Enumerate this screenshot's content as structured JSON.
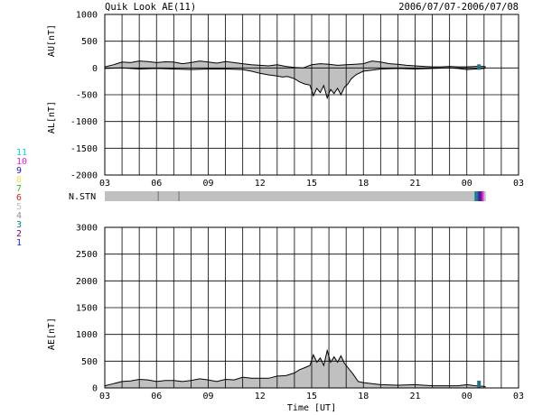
{
  "header": {
    "title": "Quik Look AE(11)",
    "date_range": "2006/07/07-2006/07/08"
  },
  "station_numbers": [
    {
      "label": "11",
      "color": "#00d8d8"
    },
    {
      "label": "10",
      "color": "#e020e0"
    },
    {
      "label": "9",
      "color": "#2020c0"
    },
    {
      "label": "8",
      "color": "#e8e850"
    },
    {
      "label": "7",
      "color": "#30c030"
    },
    {
      "label": "6",
      "color": "#e02020"
    },
    {
      "label": "5",
      "color": "#c0c0c0"
    },
    {
      "label": "4",
      "color": "#909090"
    },
    {
      "label": "3",
      "color": "#008888"
    },
    {
      "label": "2",
      "color": "#800080"
    },
    {
      "label": "1",
      "color": "#2020ff"
    }
  ],
  "nstn_label": "N.STN",
  "chart_data": [
    {
      "type": "area",
      "name": "au-al-panel",
      "ylabel_upper": "AU[nT]",
      "ylabel_lower": "AL[nT]",
      "ylim": [
        -2000,
        1000
      ],
      "yticks": [
        "1000",
        "500",
        "0",
        "-500",
        "-1000",
        "-1500",
        "-2000"
      ],
      "ytick_values": [
        1000,
        500,
        0,
        -500,
        -1000,
        -1500,
        -2000
      ],
      "xlim": [
        3,
        27
      ],
      "xticks": [
        "03",
        "06",
        "09",
        "12",
        "15",
        "18",
        "21",
        "00",
        "03"
      ],
      "xtick_values": [
        3,
        6,
        9,
        12,
        15,
        18,
        21,
        24,
        27
      ],
      "grid": true,
      "data_end": 25.1,
      "au": {
        "x": [
          3.0,
          3.5,
          4.0,
          4.5,
          5.0,
          5.5,
          6.0,
          6.5,
          7.0,
          7.5,
          8.0,
          8.5,
          9.0,
          9.5,
          10.0,
          10.5,
          11.0,
          11.5,
          12.0,
          12.5,
          13.0,
          13.5,
          14.0,
          14.5,
          15.0,
          15.5,
          16.0,
          16.5,
          17.0,
          17.5,
          18.0,
          18.5,
          19.0,
          19.5,
          20.0,
          20.5,
          21.0,
          21.5,
          22.0,
          22.5,
          23.0,
          23.5,
          24.0,
          24.5,
          25.0,
          25.1
        ],
        "y": [
          20,
          60,
          110,
          100,
          130,
          120,
          100,
          115,
          110,
          80,
          100,
          130,
          110,
          90,
          120,
          100,
          80,
          60,
          50,
          40,
          60,
          30,
          10,
          0,
          60,
          80,
          70,
          50,
          60,
          70,
          80,
          130,
          110,
          80,
          70,
          50,
          40,
          30,
          20,
          20,
          30,
          20,
          20,
          30,
          30,
          20
        ]
      },
      "al": {
        "x": [
          3.0,
          4.0,
          5.0,
          6.0,
          7.0,
          8.0,
          9.0,
          10.0,
          11.0,
          11.5,
          12.0,
          12.5,
          13.0,
          13.3,
          13.6,
          14.0,
          14.3,
          14.6,
          14.9,
          15.1,
          15.3,
          15.5,
          15.7,
          15.9,
          16.1,
          16.3,
          16.5,
          16.7,
          16.9,
          17.1,
          17.3,
          17.6,
          18.0,
          18.5,
          19.0,
          20.0,
          21.0,
          22.0,
          23.0,
          23.5,
          24.0,
          24.5,
          25.0,
          25.1
        ],
        "y": [
          -10,
          0,
          -20,
          -10,
          -20,
          -30,
          -20,
          -20,
          -30,
          -60,
          -100,
          -130,
          -150,
          -170,
          -160,
          -200,
          -260,
          -300,
          -320,
          -520,
          -380,
          -460,
          -330,
          -560,
          -400,
          -480,
          -380,
          -500,
          -360,
          -300,
          -200,
          -120,
          -60,
          -40,
          -20,
          -10,
          -20,
          -10,
          0,
          -10,
          -30,
          -20,
          -10,
          0
        ]
      }
    },
    {
      "type": "area",
      "name": "ae-panel",
      "ylabel": "AE[nT]",
      "xlabel": "Time [UT]",
      "ylim": [
        0,
        3000
      ],
      "yticks": [
        "3000",
        "2500",
        "2000",
        "1500",
        "1000",
        "500",
        "0"
      ],
      "ytick_values": [
        3000,
        2500,
        2000,
        1500,
        1000,
        500,
        0
      ],
      "xlim": [
        3,
        27
      ],
      "xticks": [
        "03",
        "06",
        "09",
        "12",
        "15",
        "18",
        "21",
        "00",
        "03"
      ],
      "xtick_values": [
        3,
        6,
        9,
        12,
        15,
        18,
        21,
        24,
        27
      ],
      "grid": true,
      "ae": {
        "x": [
          3.0,
          3.5,
          4.0,
          4.5,
          5.0,
          5.5,
          6.0,
          6.5,
          7.0,
          7.5,
          8.0,
          8.5,
          9.0,
          9.5,
          10.0,
          10.5,
          11.0,
          11.5,
          12.0,
          12.5,
          13.0,
          13.5,
          14.0,
          14.3,
          14.6,
          14.9,
          15.1,
          15.3,
          15.5,
          15.7,
          15.9,
          16.1,
          16.3,
          16.5,
          16.7,
          16.9,
          17.1,
          17.4,
          17.7,
          18.0,
          18.5,
          19.0,
          20.0,
          21.0,
          22.0,
          23.0,
          23.5,
          24.0,
          24.5,
          25.0,
          25.1
        ],
        "y": [
          40,
          80,
          120,
          130,
          160,
          150,
          120,
          140,
          140,
          120,
          140,
          170,
          150,
          120,
          160,
          150,
          200,
          180,
          180,
          180,
          220,
          230,
          280,
          340,
          380,
          420,
          620,
          480,
          560,
          420,
          700,
          480,
          580,
          480,
          600,
          460,
          380,
          260,
          120,
          100,
          80,
          60,
          50,
          60,
          40,
          40,
          40,
          60,
          40,
          30,
          20
        ]
      }
    }
  ]
}
